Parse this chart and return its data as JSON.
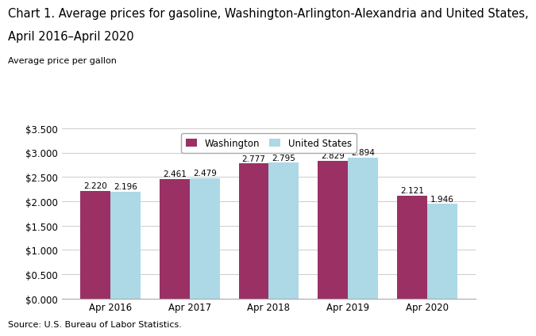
{
  "title_line1": "Chart 1. Average prices for gasoline, Washington-Arlington-Alexandria and United States,",
  "title_line2": "April 2016–April 2020",
  "ylabel": "Average price per gallon",
  "source": "Source: U.S. Bureau of Labor Statistics.",
  "categories": [
    "Apr 2016",
    "Apr 2017",
    "Apr 2018",
    "Apr 2019",
    "Apr 2020"
  ],
  "washington": [
    2.22,
    2.461,
    2.777,
    2.829,
    2.121
  ],
  "us": [
    2.196,
    2.479,
    2.795,
    2.894,
    1.946
  ],
  "washington_color": "#9B3065",
  "us_color": "#ADD8E6",
  "bar_edge_color": "none",
  "ylim": [
    0,
    3.5
  ],
  "yticks": [
    0.0,
    0.5,
    1.0,
    1.5,
    2.0,
    2.5,
    3.0,
    3.5
  ],
  "legend_labels": [
    "Washington",
    "United States"
  ],
  "bar_width": 0.38,
  "title_fontsize": 10.5,
  "ylabel_fontsize": 8,
  "tick_fontsize": 8.5,
  "annotation_fontsize": 7.5,
  "source_fontsize": 8,
  "legend_fontsize": 8.5
}
